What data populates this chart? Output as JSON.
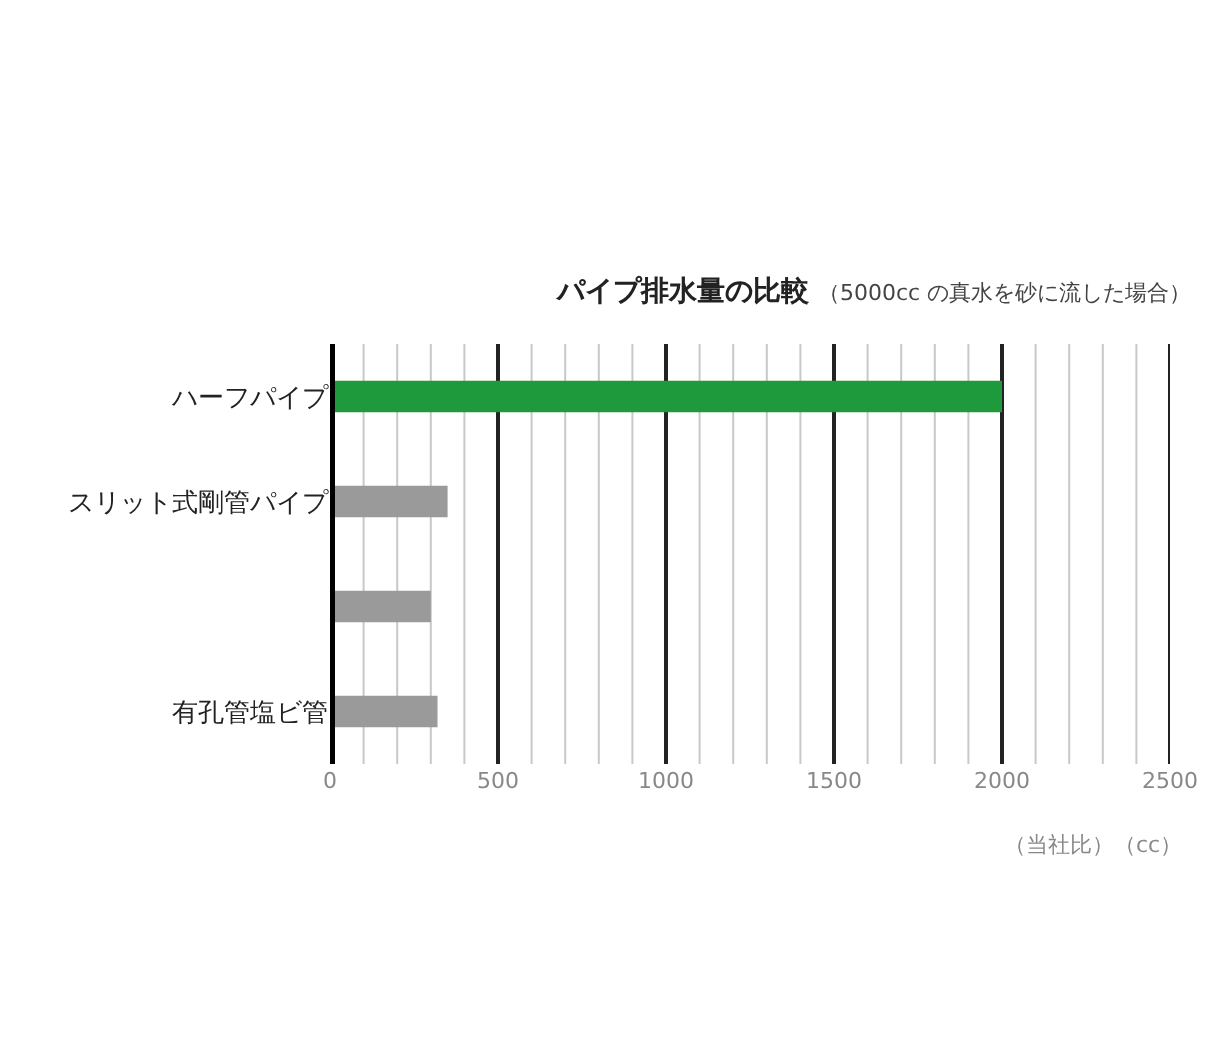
{
  "chart_data": {
    "type": "bar",
    "orientation": "horizontal",
    "title": "パイプ排水量の比較",
    "subtitle": "（5000cc の真水を砂に流した場合）",
    "xlabel": "（当社比）（cc）",
    "categories": [
      "ハーフパイプ",
      "スリット式剛管パイプ",
      null,
      "有孔管塩ビ管"
    ],
    "values": [
      2000,
      350,
      300,
      320
    ],
    "colors": [
      "#1e9a3c",
      "#9a9a9a",
      "#9a9a9a",
      "#9a9a9a"
    ],
    "xlim": [
      0,
      2500
    ],
    "xticks": [
      0,
      {
        "value": 100,
        "label": null
      },
      {
        "value": 200,
        "label": null
      },
      {
        "value": 300,
        "label": null
      },
      {
        "value": 400,
        "label": null
      },
      500,
      {
        "value": 600,
        "label": null
      },
      {
        "value": 700,
        "label": null
      },
      {
        "value": 800,
        "label": null
      },
      {
        "value": 900,
        "label": null
      },
      1000,
      {
        "value": 1100,
        "label": null
      },
      {
        "value": 1200,
        "label": null
      },
      {
        "value": 1300,
        "label": null
      },
      {
        "value": 1400,
        "label": null
      },
      1500,
      {
        "value": 1600,
        "label": null
      },
      {
        "value": 1700,
        "label": null
      },
      {
        "value": 1800,
        "label": null
      },
      {
        "value": 1900,
        "label": null
      },
      2000,
      {
        "value": 2100,
        "label": null
      },
      {
        "value": 2200,
        "label": null
      },
      {
        "value": 2300,
        "label": null
      },
      {
        "value": 2400,
        "label": null
      },
      2500
    ],
    "grid": "x"
  }
}
